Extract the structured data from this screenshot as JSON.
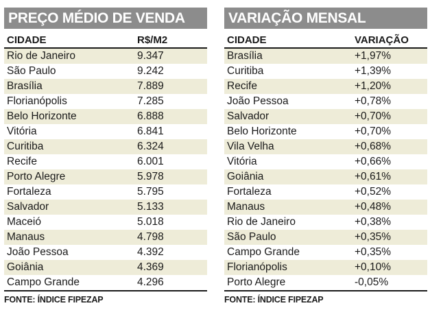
{
  "left": {
    "title": "PREÇO MÉDIO DE VENDA",
    "header": {
      "col1": "CIDADE",
      "col2": "R$/M2"
    },
    "rows": [
      {
        "city": "Rio de Janeiro",
        "value": "9.347"
      },
      {
        "city": "São Paulo",
        "value": "9.242"
      },
      {
        "city": "Brasília",
        "value": "7.889"
      },
      {
        "city": "Florianópolis",
        "value": "7.285"
      },
      {
        "city": "Belo Horizonte",
        "value": "6.888"
      },
      {
        "city": "Vitória",
        "value": "6.841"
      },
      {
        "city": "Curitiba",
        "value": "6.324"
      },
      {
        "city": "Recife",
        "value": "6.001"
      },
      {
        "city": "Porto Alegre",
        "value": "5.978"
      },
      {
        "city": "Fortaleza",
        "value": "5.795"
      },
      {
        "city": "Salvador",
        "value": "5.133"
      },
      {
        "city": "Maceió",
        "value": "5.018"
      },
      {
        "city": "Manaus",
        "value": "4.798"
      },
      {
        "city": "João Pessoa",
        "value": "4.392"
      },
      {
        "city": "Goiânia",
        "value": "4.369"
      },
      {
        "city": "Campo Grande",
        "value": "4.296"
      }
    ],
    "source": "FONTE: ÍNDICE FIPEZAP"
  },
  "right": {
    "title": "VARIAÇÃO MENSAL",
    "header": {
      "col1": "CIDADE",
      "col2": "VARIAÇÃO"
    },
    "rows": [
      {
        "city": "Brasília",
        "value": "+1,97%"
      },
      {
        "city": "Curitiba",
        "value": "+1,39%"
      },
      {
        "city": "Recife",
        "value": "+1,20%"
      },
      {
        "city": "João Pessoa",
        "value": "+0,78%"
      },
      {
        "city": "Salvador",
        "value": "+0,70%"
      },
      {
        "city": "Belo Horizonte",
        "value": "+0,70%"
      },
      {
        "city": "Vila Velha",
        "value": "+0,68%"
      },
      {
        "city": "Vitória",
        "value": "+0,66%"
      },
      {
        "city": "Goiânia",
        "value": "+0,61%"
      },
      {
        "city": "Fortaleza",
        "value": "+0,52%"
      },
      {
        "city": "Manaus",
        "value": "+0,48%"
      },
      {
        "city": "Rio de Janeiro",
        "value": "+0,38%"
      },
      {
        "city": "São Paulo",
        "value": "+0,35%"
      },
      {
        "city": "Campo Grande",
        "value": "+0,35%"
      },
      {
        "city": "Florianópolis",
        "value": "+0,10%"
      },
      {
        "city": "Porto Alegre",
        "value": "-0,05%"
      }
    ],
    "source": "FONTE: ÍNDICE FIPEZAP"
  },
  "colors": {
    "title_bg": "#8c8c8c",
    "stripe": "#eeecd8",
    "text": "#1a1a1a"
  }
}
